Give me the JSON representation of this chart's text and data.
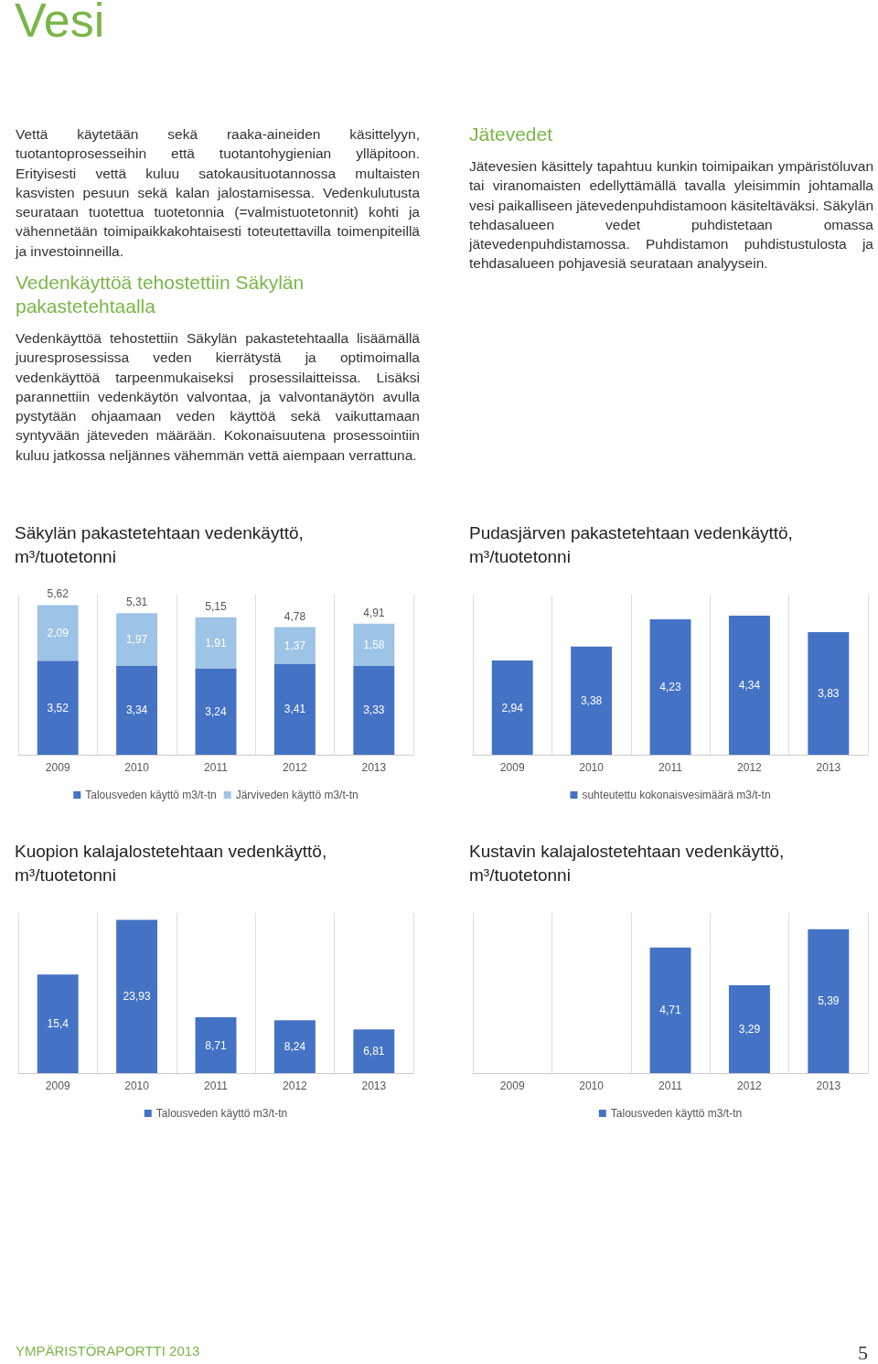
{
  "chart_data": [
    {
      "type": "other",
      "title": "Vesi",
      "annotations": [
        "Vettä käytetään sekä raaka-aineiden käsittelyyn, tuotantoprosesseihin että tuotantohygienian ylläpitoon. Erityisesti vettä kuluu satokausituotannossa multaisten kasvisten pesuun sekä kalan jalostamisessa. Vedenkulutusta seurataan tuotettua tuotetonnia (=valmistuotetonnit) kohti ja vähennetään toimipaikkakohtaisesti toteutettavilla toimenpiteillä ja investoinneilla.",
        "Vedenkäyttöä tehostettiin Säkylän pakastetehtaalla",
        "Vedenkäyttöä tehostettiin Säkylän pakastetehtaalla lisäämällä juuresprosessissa veden kierrätystä ja optimoimalla vedenkäyttöä tarpeenmukaiseksi prosessilaitteissa. Lisäksi parannettiin vedenkäytön valvontaa, ja valvontanäytön avulla pystytään ohjaamaan veden käyttöä sekä vaikuttamaan syntyvään jäteveden määrään. Kokonaisuutena prosessointiin kuluu jatkossa neljännes vähemmän vettä aiempaan verrattuna.",
        "Jätevedet",
        "Jätevesien käsittely tapahtuu kunkin toimipaikan ympäristöluvan tai viranomaisten edellyttämällä tavalla yleisimmin johtamalla vesi paikalliseen jätevedenpuhdistamoon käsiteltäväksi. Säkylän tehdasalueen vedet puhdistetaan omassa jätevedenpuhdistamossa. Puhdistamon puhdistustulosta ja tehdasalueen pohjavesiä seurataan analyysein.",
        "YMPÄRISTÖRAPORTTI 2013",
        "5"
      ]
    },
    {
      "type": "bar",
      "title": "Säkylän pakastetehtaan vedenkäyttö, m³/tuotetonni",
      "categories": [
        "2009",
        "2010",
        "2011",
        "2012",
        "2013"
      ],
      "stacked": true,
      "grid": "x",
      "legend": "bottom",
      "series": [
        {
          "name": "Talousveden käyttö m3/t-tn",
          "color": "#4472c4",
          "values": [
            3.52,
            3.34,
            3.24,
            3.41,
            3.33
          ],
          "value_labels": [
            "3,52",
            "3,34",
            "3,24",
            "3,41",
            "3,33"
          ]
        },
        {
          "name": "Järviveden käyttö m3/t-tn",
          "color": "#9dc3e6",
          "values": [
            2.09,
            1.97,
            1.91,
            1.37,
            1.58
          ],
          "value_labels": [
            "2,09",
            "1,97",
            "1,91",
            "1,37",
            "1,58"
          ]
        }
      ],
      "totals": [
        "5,62",
        "5,31",
        "5,15",
        "4,78",
        "4,91"
      ]
    },
    {
      "type": "bar",
      "title": "Pudasjärven pakastetehtaan vedenkäyttö, m³/tuotetonni",
      "categories": [
        "2009",
        "2010",
        "2011",
        "2012",
        "2013"
      ],
      "grid": "x",
      "legend": "bottom",
      "series": [
        {
          "name": "suhteutettu kokonaisvesimäärä m3/t-tn",
          "color": "#4472c4",
          "values": [
            2.94,
            3.38,
            4.23,
            4.34,
            3.83
          ],
          "value_labels": [
            "2,94",
            "3,38",
            "4,23",
            "4,34",
            "3,83"
          ]
        }
      ]
    },
    {
      "type": "bar",
      "title": "Kuopion kalajalostetehtaan vedenkäyttö, m³/tuotetonni",
      "categories": [
        "2009",
        "2010",
        "2011",
        "2012",
        "2013"
      ],
      "grid": "x",
      "legend": "bottom",
      "series": [
        {
          "name": "Talousveden käyttö m3/t-tn",
          "color": "#4472c4",
          "values": [
            15.4,
            23.93,
            8.71,
            8.24,
            6.81
          ],
          "value_labels": [
            "15,4",
            "23,93",
            "8,71",
            "8,24",
            "6,81"
          ]
        }
      ]
    },
    {
      "type": "bar",
      "title": "Kustavin kalajalostetehtaan vedenkäyttö, m³/tuotetonni",
      "categories": [
        "2009",
        "2010",
        "2011",
        "2012",
        "2013"
      ],
      "grid": "x",
      "legend": "bottom",
      "series": [
        {
          "name": "Talousveden käyttö m3/t-tn",
          "color": "#4472c4",
          "values": [
            null,
            null,
            4.71,
            3.29,
            5.39
          ],
          "value_labels": [
            null,
            null,
            "4,71",
            "3,29",
            "5,39"
          ]
        }
      ]
    }
  ]
}
